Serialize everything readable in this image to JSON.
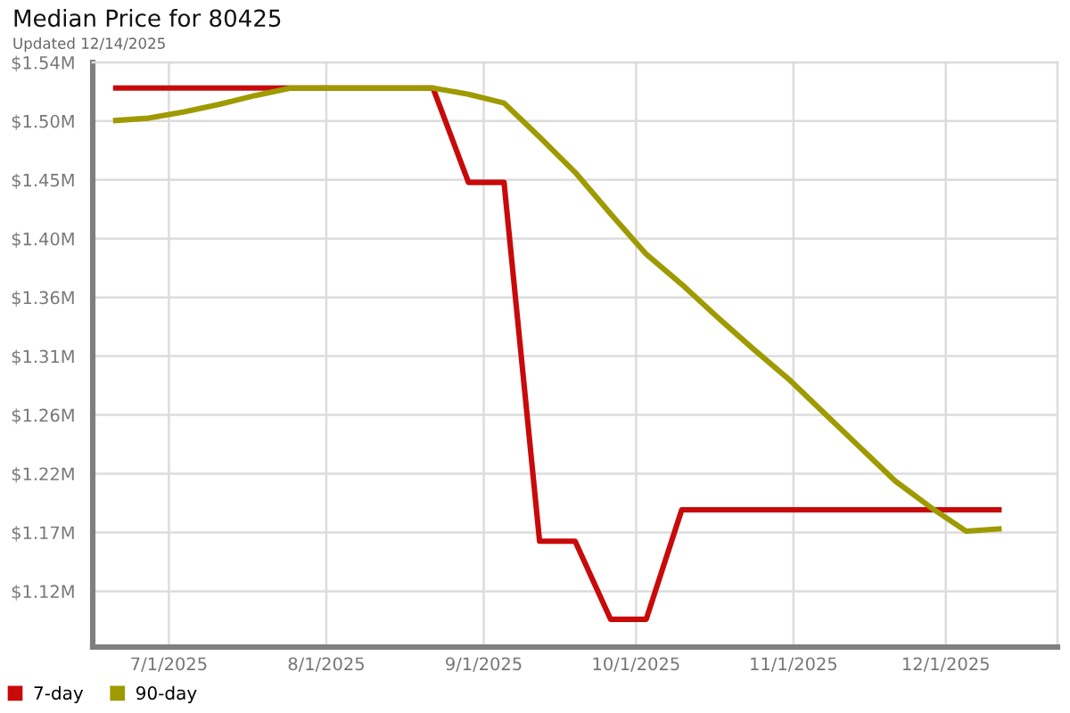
{
  "chart_data": {
    "type": "line",
    "title": "Median Price for 80425",
    "subtitle": "Updated 12/14/2025",
    "x": [
      "2025-06-20",
      "2025-06-27",
      "2025-07-04",
      "2025-07-11",
      "2025-07-18",
      "2025-07-25",
      "2025-08-01",
      "2025-08-08",
      "2025-08-15",
      "2025-08-22",
      "2025-08-29",
      "2025-09-05",
      "2025-09-12",
      "2025-09-19",
      "2025-09-26",
      "2025-10-03",
      "2025-10-10",
      "2025-10-17",
      "2025-10-24",
      "2025-10-31",
      "2025-11-07",
      "2025-11-14",
      "2025-11-21",
      "2025-11-28",
      "2025-12-05",
      "2025-12-12"
    ],
    "series": [
      {
        "name": "7-day",
        "color": "#c80a0a",
        "values": [
          1.523,
          1.523,
          1.523,
          1.523,
          1.523,
          1.523,
          1.523,
          1.523,
          1.523,
          1.523,
          1.448,
          1.448,
          1.163,
          1.163,
          1.101,
          1.101,
          1.188,
          1.188,
          1.188,
          1.188,
          1.188,
          1.188,
          1.188,
          1.188,
          1.188,
          1.188
        ]
      },
      {
        "name": "90-day",
        "color": "#9e9a00",
        "values": [
          1.497,
          1.499,
          1.504,
          1.51,
          1.517,
          1.523,
          1.523,
          1.523,
          1.523,
          1.523,
          1.518,
          1.511,
          1.484,
          1.456,
          1.423,
          1.391,
          1.367,
          1.341,
          1.316,
          1.292,
          1.265,
          1.238,
          1.211,
          1.19,
          1.171,
          1.173
        ]
      }
    ],
    "xlim": [
      "2025-06-16",
      "2025-12-23"
    ],
    "xticks": [
      {
        "value": "2025-07-01",
        "label": "7/1/2025"
      },
      {
        "value": "2025-08-01",
        "label": "8/1/2025"
      },
      {
        "value": "2025-09-01",
        "label": "9/1/2025"
      },
      {
        "value": "2025-10-01",
        "label": "10/1/2025"
      },
      {
        "value": "2025-11-01",
        "label": "11/1/2025"
      },
      {
        "value": "2025-12-01",
        "label": "12/1/2025"
      }
    ],
    "ylim": [
      1.079,
      1.5433
    ],
    "yticks": [
      {
        "value": 1.1233,
        "label": "$1.12M"
      },
      {
        "value": 1.17,
        "label": "$1.17M"
      },
      {
        "value": 1.2167,
        "label": "$1.22M"
      },
      {
        "value": 1.2633,
        "label": "$1.26M"
      },
      {
        "value": 1.31,
        "label": "$1.31M"
      },
      {
        "value": 1.3567,
        "label": "$1.36M"
      },
      {
        "value": 1.4033,
        "label": "$1.40M"
      },
      {
        "value": 1.45,
        "label": "$1.45M"
      },
      {
        "value": 1.4967,
        "label": "$1.50M"
      },
      {
        "value": 1.5433,
        "label": "$1.54M"
      }
    ],
    "grid": true,
    "legend": "bottom left"
  }
}
